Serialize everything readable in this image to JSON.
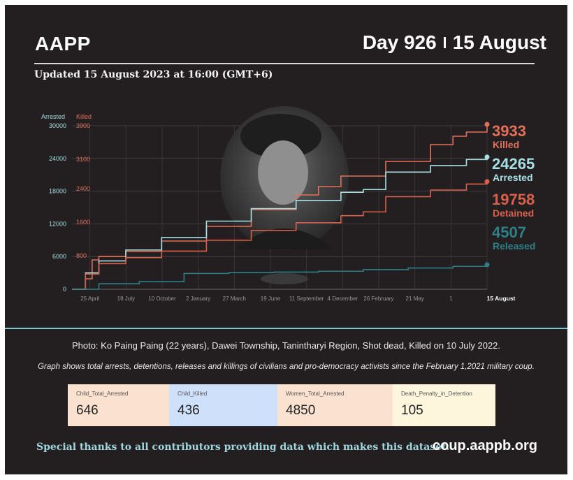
{
  "header": {
    "brand": "AAPP",
    "day": "Day 926",
    "date": "15 August",
    "updated": "Updated 15 August 2023 at 16:00 (GMT+6)"
  },
  "colors": {
    "background": "#231f20",
    "killed": "#e2705a",
    "detained": "#d8604d",
    "arrested": "#a8dfe3",
    "released": "#2f7f87",
    "accent_rule": "#7fc7cc"
  },
  "chart_data": {
    "type": "line",
    "axis_titles": {
      "left_outer": "Arrested",
      "left_inner": "Killed"
    },
    "arrested_axis": {
      "ticks": [
        0,
        6000,
        12000,
        18000,
        24000,
        30000
      ],
      "ylim": [
        0,
        30000
      ]
    },
    "killed_axis": {
      "ticks": [
        "800",
        "1600",
        "2400",
        "3100",
        "3900"
      ],
      "ylim": [
        0,
        3900
      ]
    },
    "x_ticks": [
      "25 April",
      "18 July",
      "10 October",
      "2 January",
      "27 March",
      "19 June",
      "11 September",
      "4 December",
      "26 February",
      "21 May",
      "1",
      "15 August"
    ],
    "x_range_days": [
      0,
      926
    ],
    "series": [
      {
        "name": "Killed",
        "value_label": "3933",
        "axis": "killed",
        "color": "#e2705a",
        "x": [
          0,
          30,
          45,
          60,
          120,
          200,
          300,
          400,
          500,
          550,
          600,
          700,
          800,
          850,
          880,
          926
        ],
        "y": [
          0,
          250,
          700,
          780,
          900,
          1150,
          1500,
          1900,
          2250,
          2450,
          2700,
          3050,
          3450,
          3650,
          3750,
          3933
        ]
      },
      {
        "name": "Arrested",
        "value_label": "24265",
        "axis": "arrested",
        "color": "#a8dfe3",
        "x": [
          0,
          30,
          60,
          120,
          200,
          300,
          400,
          500,
          600,
          650,
          700,
          800,
          880,
          926
        ],
        "y": [
          0,
          3000,
          5200,
          7200,
          9500,
          12500,
          14800,
          16300,
          17800,
          18300,
          21500,
          22700,
          23800,
          24265
        ]
      },
      {
        "name": "Detained",
        "value_label": "19758",
        "axis": "arrested",
        "color": "#d8604d",
        "x": [
          0,
          30,
          60,
          120,
          200,
          300,
          400,
          500,
          600,
          650,
          700,
          800,
          880,
          926
        ],
        "y": [
          0,
          2800,
          4700,
          5800,
          7000,
          9000,
          10800,
          12200,
          13500,
          14200,
          17000,
          18200,
          19300,
          19758
        ]
      },
      {
        "name": "Released",
        "value_label": "4507",
        "axis": "arrested",
        "color": "#2f7f87",
        "x": [
          0,
          60,
          150,
          250,
          350,
          450,
          550,
          650,
          750,
          850,
          926
        ],
        "y": [
          0,
          1000,
          1400,
          2900,
          3050,
          3150,
          3300,
          3600,
          3900,
          4200,
          4507
        ]
      }
    ],
    "grid": true
  },
  "captions": {
    "photo": "Photo: Ko Paing Paing (22 years), Dawei Township, Tanintharyi Region, Shot dead, Killed on 10 July 2022.",
    "graph_note": "Graph shows total arrests, detentions, releases and killings of civilians and pro-democracy activists since the February 1,2021 military coup."
  },
  "stats": [
    {
      "label": "Child_Total_Arrested",
      "value": "646",
      "bg": "#fbe1cf"
    },
    {
      "label": "Child_Killed",
      "value": "436",
      "bg": "#cfe0fb"
    },
    {
      "label": "Women_Total_Arrested",
      "value": "4850",
      "bg": "#fbe1cf"
    },
    {
      "label": "Death_Penalty_in_Detention",
      "value": "105",
      "bg": "#fef5dd"
    }
  ],
  "footer": {
    "thanks": "Special thanks to all contributors providing data which makes this dataset.",
    "site": "coup.aappb.org"
  }
}
